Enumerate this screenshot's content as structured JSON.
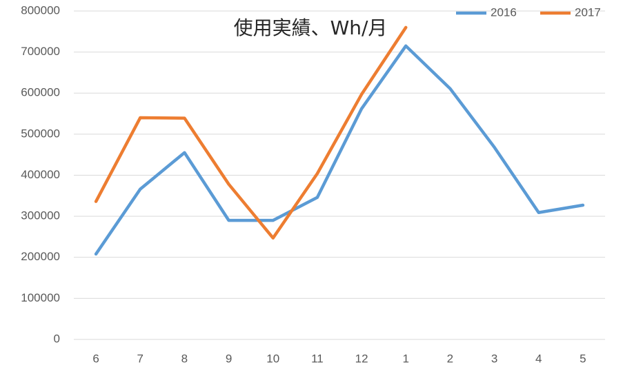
{
  "chart_data": {
    "type": "line",
    "title": "使用実績、Wh/月",
    "categories": [
      "6",
      "7",
      "8",
      "9",
      "10",
      "11",
      "12",
      "1",
      "2",
      "3",
      "4",
      "5"
    ],
    "series": [
      {
        "name": "2016",
        "color": "#5b9bd5",
        "values": [
          208000,
          366000,
          455000,
          290000,
          290000,
          346000,
          562000,
          715000,
          611000,
          468000,
          309000,
          327000
        ]
      },
      {
        "name": "2017",
        "color": "#ed7d31",
        "values": [
          336000,
          540000,
          539000,
          378000,
          247000,
          404000,
          597000,
          760000,
          null,
          null,
          null,
          null
        ]
      }
    ],
    "ylim": [
      0,
      800000
    ],
    "yticks": [
      0,
      100000,
      200000,
      300000,
      400000,
      500000,
      600000,
      700000,
      800000
    ],
    "grid": true,
    "legend": "top-right"
  }
}
